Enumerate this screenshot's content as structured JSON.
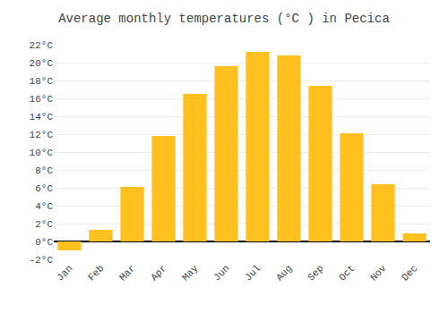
{
  "chart_data": {
    "type": "bar",
    "title": "Average monthly temperatures (°C ) in Pecica",
    "categories": [
      "Jan",
      "Feb",
      "Mar",
      "Apr",
      "May",
      "Jun",
      "Jul",
      "Aug",
      "Sep",
      "Oct",
      "Nov",
      "Dec"
    ],
    "values": [
      -1.0,
      1.3,
      6.1,
      11.8,
      16.5,
      19.6,
      21.2,
      20.8,
      17.4,
      12.1,
      6.4,
      0.9
    ],
    "color": "#FFC020",
    "ylim": [
      -2,
      22
    ],
    "yticks": [
      {
        "value": -2,
        "label": "-2°C"
      },
      {
        "value": 0,
        "label": "0°C"
      },
      {
        "value": 2,
        "label": "2°C"
      },
      {
        "value": 4,
        "label": "4°C"
      },
      {
        "value": 6,
        "label": "6°C"
      },
      {
        "value": 8,
        "label": "8°C"
      },
      {
        "value": 10,
        "label": "10°C"
      },
      {
        "value": 12,
        "label": "12°C"
      },
      {
        "value": 14,
        "label": "14°C"
      },
      {
        "value": 16,
        "label": "16°C"
      },
      {
        "value": 18,
        "label": "18°C"
      },
      {
        "value": 20,
        "label": "20°C"
      },
      {
        "value": 22,
        "label": "22°C"
      }
    ],
    "grid": true
  }
}
